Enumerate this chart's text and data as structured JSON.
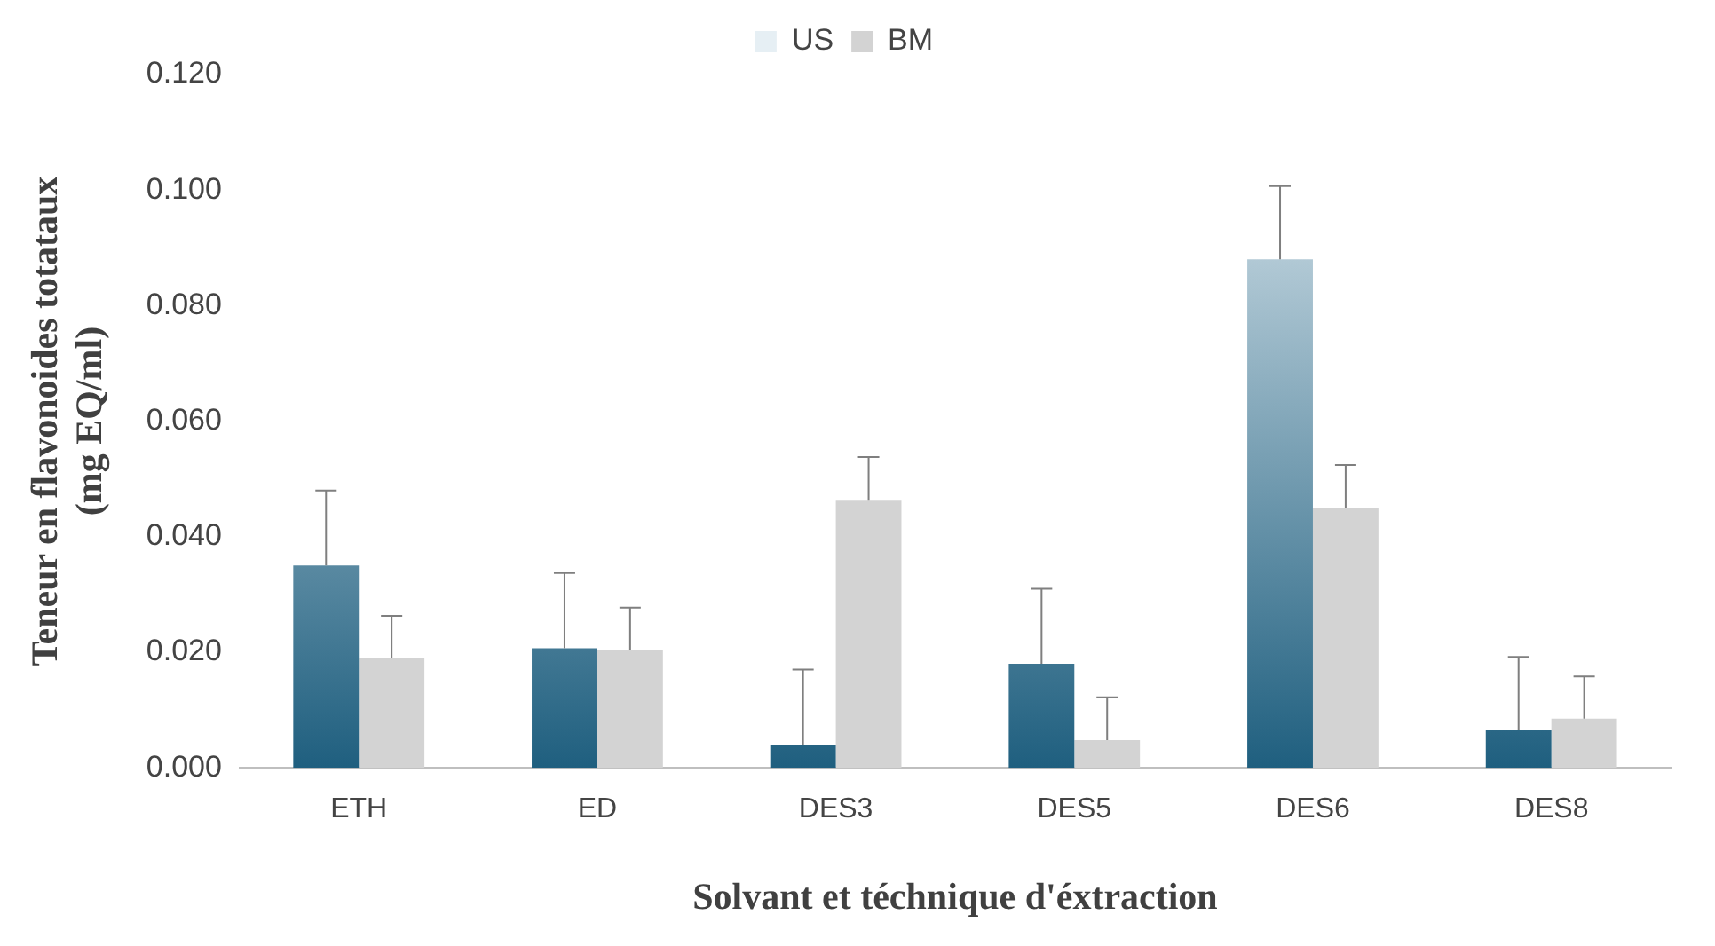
{
  "chart_data": {
    "type": "bar",
    "xlabel": "Solvant et téchnique d'éxtraction",
    "ylabel": "Teneur en flavonoides totataux\n(mg EQ/ml)",
    "categories": [
      "ETH",
      "ED",
      "DES3",
      "DES5",
      "DES6",
      "DES8"
    ],
    "series": [
      {
        "name": "US",
        "color": "#1f5f7f",
        "values": [
          0.035,
          0.0207,
          0.004,
          0.018,
          0.088,
          0.0065
        ],
        "errors": [
          0.013,
          0.013,
          0.013,
          0.013,
          0.0127,
          0.0127
        ]
      },
      {
        "name": "BM",
        "color": "#d3d3d3",
        "values": [
          0.019,
          0.0204,
          0.0464,
          0.0048,
          0.045,
          0.0085
        ],
        "errors": [
          0.0073,
          0.0073,
          0.0074,
          0.0074,
          0.0074,
          0.0073
        ]
      }
    ],
    "ylim": [
      0,
      0.12
    ],
    "yticks": [
      {
        "value": 0,
        "label": "0.000"
      },
      {
        "value": 0.02,
        "label": "0.020"
      },
      {
        "value": 0.04,
        "label": "0.040"
      },
      {
        "value": 0.06,
        "label": "0.060"
      },
      {
        "value": 0.08,
        "label": "0.080"
      },
      {
        "value": 0.1,
        "label": "0.100"
      },
      {
        "value": 0.12,
        "label": "0.120"
      }
    ],
    "grid": false,
    "legend": "top"
  }
}
